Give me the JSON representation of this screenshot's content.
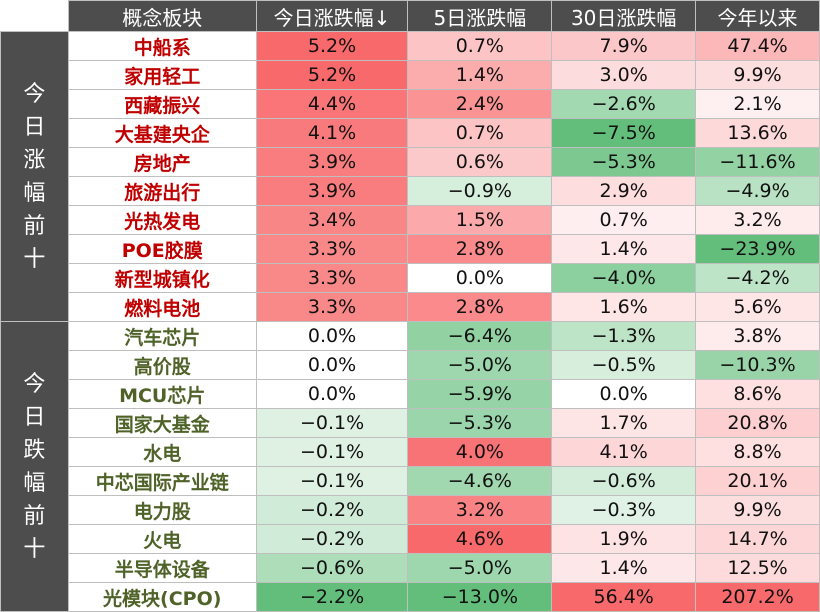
{
  "chart_data": {
    "type": "table",
    "columns": [
      "概念板块",
      "今日涨跌幅↓",
      "5日涨跌幅",
      "30日涨跌幅",
      "今年以来"
    ],
    "groups": [
      {
        "label": "今日涨幅前十",
        "rows": [
          {
            "name": "中船系",
            "values": [
              5.2,
              0.7,
              7.9,
              47.4
            ]
          },
          {
            "name": "家用轻工",
            "values": [
              5.2,
              1.4,
              3.0,
              9.9
            ]
          },
          {
            "name": "西藏振兴",
            "values": [
              4.4,
              2.4,
              -2.6,
              2.1
            ]
          },
          {
            "name": "大基建央企",
            "values": [
              4.1,
              0.7,
              -7.5,
              13.6
            ]
          },
          {
            "name": "房地产",
            "values": [
              3.9,
              0.6,
              -5.3,
              -11.6
            ]
          },
          {
            "name": "旅游出行",
            "values": [
              3.9,
              -0.9,
              2.9,
              -4.9
            ]
          },
          {
            "name": "光热发电",
            "values": [
              3.4,
              1.5,
              0.7,
              3.2
            ]
          },
          {
            "name": "POE胶膜",
            "values": [
              3.3,
              2.8,
              1.4,
              -23.9
            ]
          },
          {
            "name": "新型城镇化",
            "values": [
              3.3,
              0.0,
              -4.0,
              -4.2
            ]
          },
          {
            "name": "燃料电池",
            "values": [
              3.3,
              2.8,
              1.6,
              5.6
            ]
          }
        ]
      },
      {
        "label": "今日跌幅前十",
        "rows": [
          {
            "name": "汽车芯片",
            "values": [
              0.0,
              -6.4,
              -1.3,
              3.8
            ]
          },
          {
            "name": "高价股",
            "values": [
              0.0,
              -5.0,
              -0.5,
              -10.3
            ]
          },
          {
            "name": "MCU芯片",
            "values": [
              0.0,
              -5.9,
              0.0,
              8.6
            ]
          },
          {
            "name": "国家大基金",
            "values": [
              -0.1,
              -5.3,
              1.7,
              20.8
            ]
          },
          {
            "name": "水电",
            "values": [
              -0.1,
              4.0,
              4.1,
              8.8
            ]
          },
          {
            "name": "中芯国际产业链",
            "values": [
              -0.1,
              -4.6,
              -0.6,
              20.1
            ]
          },
          {
            "name": "电力股",
            "values": [
              -0.2,
              3.2,
              -0.3,
              9.9
            ]
          },
          {
            "name": "火电",
            "values": [
              -0.2,
              4.6,
              1.9,
              14.7
            ]
          },
          {
            "name": "半导体设备",
            "values": [
              -0.6,
              -5.0,
              1.4,
              12.5
            ]
          },
          {
            "name": "光模块(CPO)",
            "values": [
              -2.2,
              -13.0,
              56.4,
              207.2
            ]
          }
        ]
      }
    ],
    "colors": {
      "positive": "#f8696b",
      "negative": "#63be7b",
      "neutral": "#ffffff",
      "header_bg": "#4d4d4d",
      "top_name": "#c00000",
      "bottom_name": "#4f6228"
    }
  }
}
